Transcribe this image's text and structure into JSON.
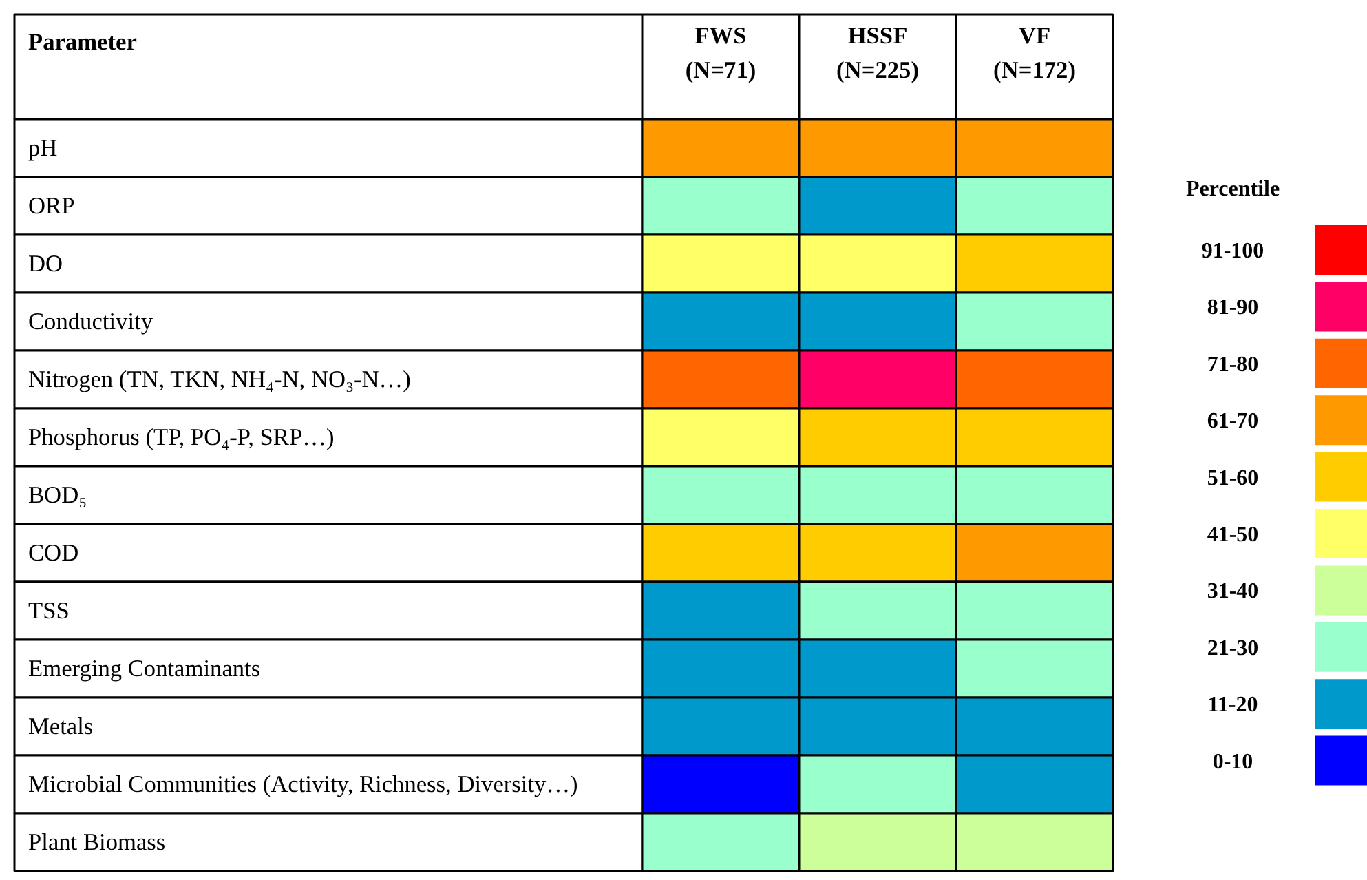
{
  "chart_data": {
    "type": "heatmap",
    "ylabel": "Parameter",
    "categories": [
      "FWS (N=71)",
      "HSSF (N=225)",
      "VF (N=172)"
    ],
    "y_categories": [
      "pH",
      "ORP",
      "DO",
      "Conductivity",
      "Nitrogen (TN, TKN, NH₄-N, NO₃-N…)",
      "Phosphorus (TP, PO₄-P, SRP…)",
      "BOD₅",
      "COD",
      "TSS",
      "Emerging Contaminants",
      "Metals",
      "Microbial Communities (Activity, Richness, Diversity…)",
      "Plant Biomass"
    ],
    "cells": [
      [
        65,
        65,
        65
      ],
      [
        25,
        15,
        25
      ],
      [
        45,
        45,
        55
      ],
      [
        15,
        15,
        25
      ],
      [
        75,
        85,
        75
      ],
      [
        45,
        55,
        55
      ],
      [
        25,
        25,
        25
      ],
      [
        55,
        55,
        65
      ],
      [
        15,
        25,
        25
      ],
      [
        15,
        15,
        25
      ],
      [
        15,
        15,
        15
      ],
      [
        5,
        25,
        15
      ],
      [
        25,
        35,
        35
      ]
    ],
    "clabel": "Percentile",
    "clim": [
      0,
      100
    ],
    "cticks": [
      {
        "value": 95,
        "label": "91-100"
      },
      {
        "value": 85,
        "label": "81-90"
      },
      {
        "value": 75,
        "label": "71-80"
      },
      {
        "value": 65,
        "label": "61-70"
      },
      {
        "value": 55,
        "label": "51-60"
      },
      {
        "value": 45,
        "label": "41-50"
      },
      {
        "value": 35,
        "label": "31-40"
      },
      {
        "value": 25,
        "label": "21-30"
      },
      {
        "value": 15,
        "label": "11-20"
      },
      {
        "value": 5,
        "label": "0-10"
      }
    ],
    "colors": [
      "#ff0000",
      "#ff0066",
      "#ff6600",
      "#ff9900",
      "#ffcc00",
      "#ffff66",
      "#ccff99",
      "#99ffcc",
      "#0099cc",
      "#0000ff"
    ]
  }
}
